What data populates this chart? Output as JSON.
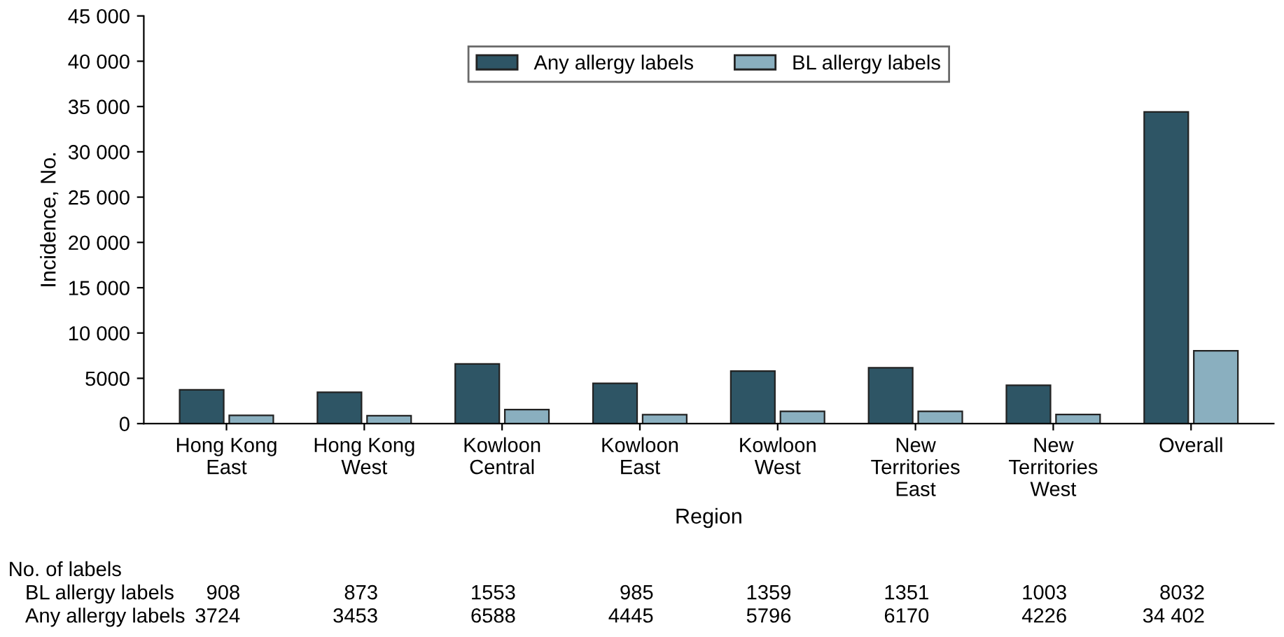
{
  "chart_data": {
    "type": "bar",
    "xlabel": "Region",
    "ylabel": "Incidence, No.",
    "categories": [
      "Hong Kong\nEast",
      "Hong Kong\nWest",
      "Kowloon\nCentral",
      "Kowloon\nEast",
      "Kowloon\nWest",
      "New\nTerritories\nEast",
      "New\nTerritories\nWest",
      "Overall"
    ],
    "series": [
      {
        "name": "Any allergy labels",
        "color": "#2e5565",
        "values": [
          3724,
          3453,
          6588,
          4445,
          5796,
          6170,
          4226,
          34402
        ],
        "value_labels": [
          "3724",
          "3453",
          "6588",
          "4445",
          "5796",
          "6170",
          "4226",
          "34 402"
        ]
      },
      {
        "name": "BL allergy labels",
        "color": "#8aafbf",
        "values": [
          908,
          873,
          1553,
          985,
          1359,
          1351,
          1003,
          8032
        ],
        "value_labels": [
          "908",
          "873",
          "1553",
          "985",
          "1359",
          "1351",
          "1003",
          "8032"
        ]
      }
    ],
    "ylim": [
      0,
      45000
    ],
    "yticks": [
      0,
      5000,
      {
        "value": 10000,
        "label": "10 000"
      },
      {
        "value": 15000,
        "label": "15 000"
      },
      {
        "value": 20000,
        "label": "20 000"
      },
      {
        "value": 25000,
        "label": "25 000"
      },
      {
        "value": 30000,
        "label": "30 000"
      },
      {
        "value": 35000,
        "label": "35 000"
      },
      {
        "value": 40000,
        "label": "40 000"
      },
      {
        "value": 45000,
        "label": "45 000"
      }
    ],
    "grid": false,
    "legend": "top",
    "annotations": [
      "No. of labels"
    ]
  }
}
